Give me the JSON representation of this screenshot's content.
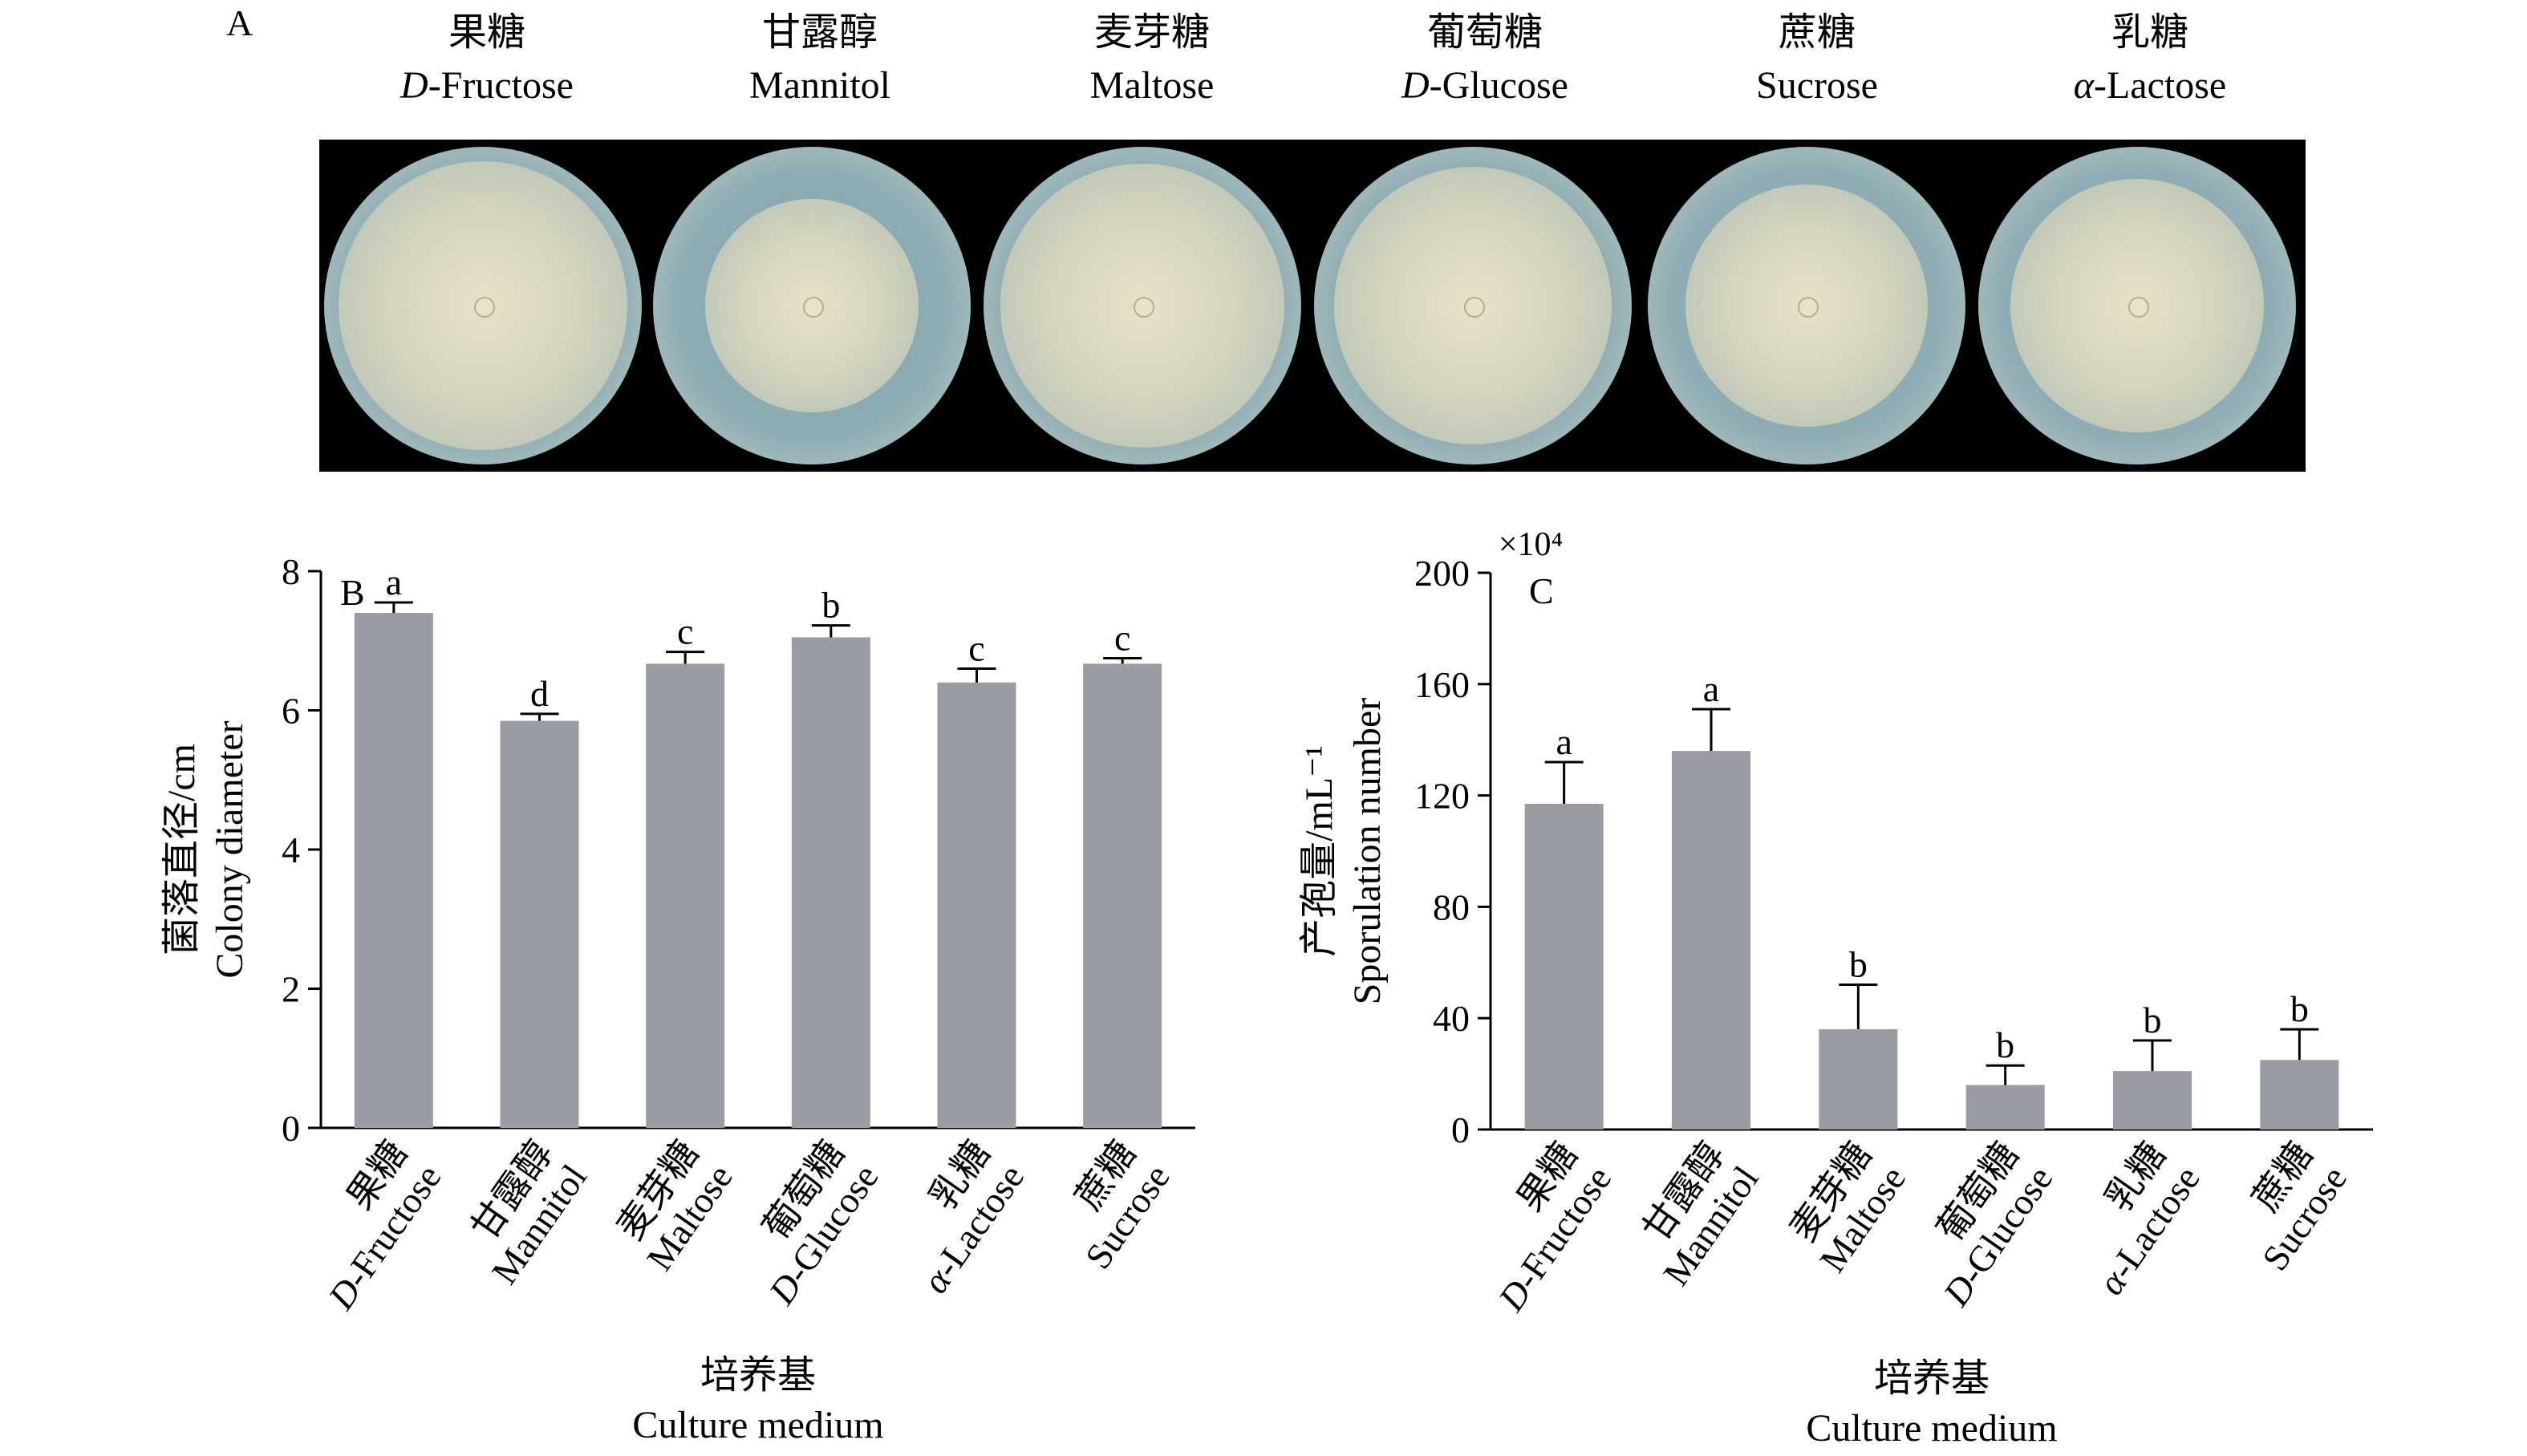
{
  "panelA": {
    "letter": "A",
    "media": [
      {
        "zh": "果糖",
        "en_prefix": "D",
        "en_rest": "-Fructose"
      },
      {
        "zh": "甘露醇",
        "en_prefix": "",
        "en_rest": "Mannitol"
      },
      {
        "zh": "麦芽糖",
        "en_prefix": "",
        "en_rest": "Maltose"
      },
      {
        "zh": "葡萄糖",
        "en_prefix": "D",
        "en_rest": "-Glucose"
      },
      {
        "zh": "蔗糖",
        "en_prefix": "",
        "en_rest": "Sucrose"
      },
      {
        "zh": "乳糖",
        "en_prefix": "α",
        "en_rest": "-Lactose"
      }
    ],
    "colony_coverage": [
      0.98,
      0.72,
      0.96,
      0.94,
      0.82,
      0.86
    ]
  },
  "chart_data": [
    {
      "type": "bar",
      "panel": "B",
      "categories_zh": [
        "果糖",
        "甘露醇",
        "麦芽糖",
        "葡萄糖",
        "乳糖",
        "蔗糖"
      ],
      "categories_en": [
        "D-Fructose",
        "Mannitol",
        "Maltose",
        "D-Glucose",
        "α-Lactose",
        "Sucrose"
      ],
      "values": [
        7.4,
        5.85,
        6.67,
        7.05,
        6.4,
        6.67
      ],
      "errors": [
        0.15,
        0.1,
        0.17,
        0.17,
        0.2,
        0.08
      ],
      "significance": [
        "a",
        "d",
        "c",
        "b",
        "c",
        "c"
      ],
      "ylabel_zh": "菌落直径/cm",
      "ylabel_en": "Colony diameter",
      "xlabel_zh": "培养基",
      "xlabel_en": "Culture medium",
      "ylim": [
        0,
        8
      ],
      "yticks": [
        0,
        2,
        4,
        6,
        8
      ],
      "bar_color": "#9a9ca3"
    },
    {
      "type": "bar",
      "panel": "C",
      "categories_zh": [
        "果糖",
        "甘露醇",
        "麦芽糖",
        "葡萄糖",
        "乳糖",
        "蔗糖"
      ],
      "categories_en": [
        "D-Fructose",
        "Mannitol",
        "Maltose",
        "D-Glucose",
        "α-Lactose",
        "Sucrose"
      ],
      "values": [
        117,
        136,
        36,
        16,
        21,
        25
      ],
      "errors": [
        15,
        15,
        16,
        7,
        11,
        11
      ],
      "significance": [
        "a",
        "a",
        "b",
        "b",
        "b",
        "b"
      ],
      "ylabel_zh": "产孢量/mL⁻¹",
      "ylabel_en": "Sporulation number",
      "xlabel_zh": "培养基",
      "xlabel_en": "Culture medium",
      "ylim": [
        0,
        200
      ],
      "yticks": [
        0,
        40,
        80,
        120,
        160,
        200
      ],
      "multiplier": "×10⁴",
      "bar_color": "#9a9ca3"
    }
  ]
}
